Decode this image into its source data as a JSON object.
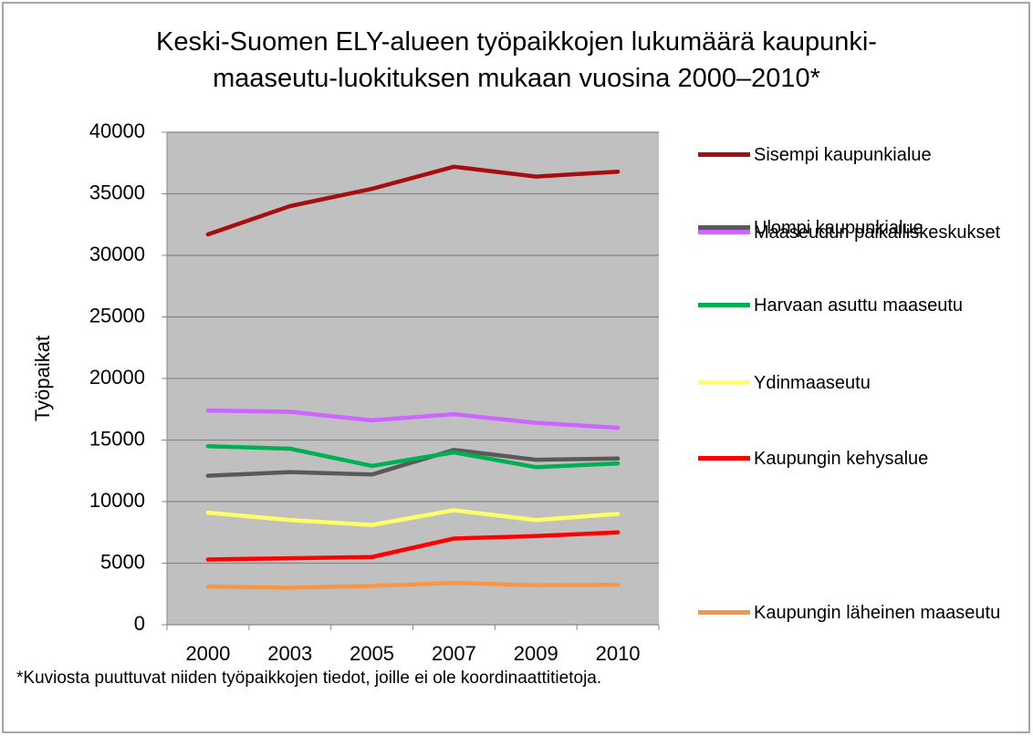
{
  "chart_data": {
    "type": "line",
    "title": "Keski-Suomen ELY-alueen työpaikkojen lukumäärä kaupunki-maaseutu-luokituksen mukaan vuosina 2000–2010*",
    "y_label": "Työpaikat",
    "note": "*Kuviosta puuttuvat niiden työpaikkojen tiedot, joille ei ole koordinaattitietoja.",
    "categories": [
      "2000",
      "2003",
      "2005",
      "2007",
      "2009",
      "2010"
    ],
    "series": [
      {
        "name": "Sisempi kaupunkialue",
        "color": "#a50f0f",
        "values": [
          31700,
          34000,
          35400,
          37200,
          36400,
          36800
        ]
      },
      {
        "name": "Maaseudun paikalliskeskukset",
        "color": "#cc66ff",
        "values": [
          17400,
          17300,
          16600,
          17100,
          16400,
          16000
        ]
      },
      {
        "name": "Ulompi kaupunkialue",
        "color": "#595959",
        "values": [
          12100,
          12400,
          12200,
          14200,
          13400,
          13500
        ]
      },
      {
        "name": "Harvaan asuttu maaseutu",
        "color": "#00b050",
        "values": [
          14500,
          14300,
          12900,
          14000,
          12800,
          13100
        ]
      },
      {
        "name": "Ydinmaaseutu",
        "color": "#ffff66",
        "values": [
          9100,
          8500,
          8100,
          9300,
          8500,
          9000
        ]
      },
      {
        "name": "Kaupungin kehysalue",
        "color": "#ff0000",
        "values": [
          5300,
          5400,
          5500,
          7000,
          7200,
          7500
        ]
      },
      {
        "name": "Kaupungin läheinen maaseutu",
        "color": "#f79646",
        "values": [
          3100,
          3000,
          3150,
          3400,
          3200,
          3250
        ]
      }
    ],
    "ylim": [
      0,
      40000
    ],
    "yticks": [
      0,
      5000,
      10000,
      15000,
      20000,
      25000,
      30000,
      35000,
      40000
    ],
    "grid": true,
    "plot_background": "#c0c0c0",
    "legend": "right"
  }
}
